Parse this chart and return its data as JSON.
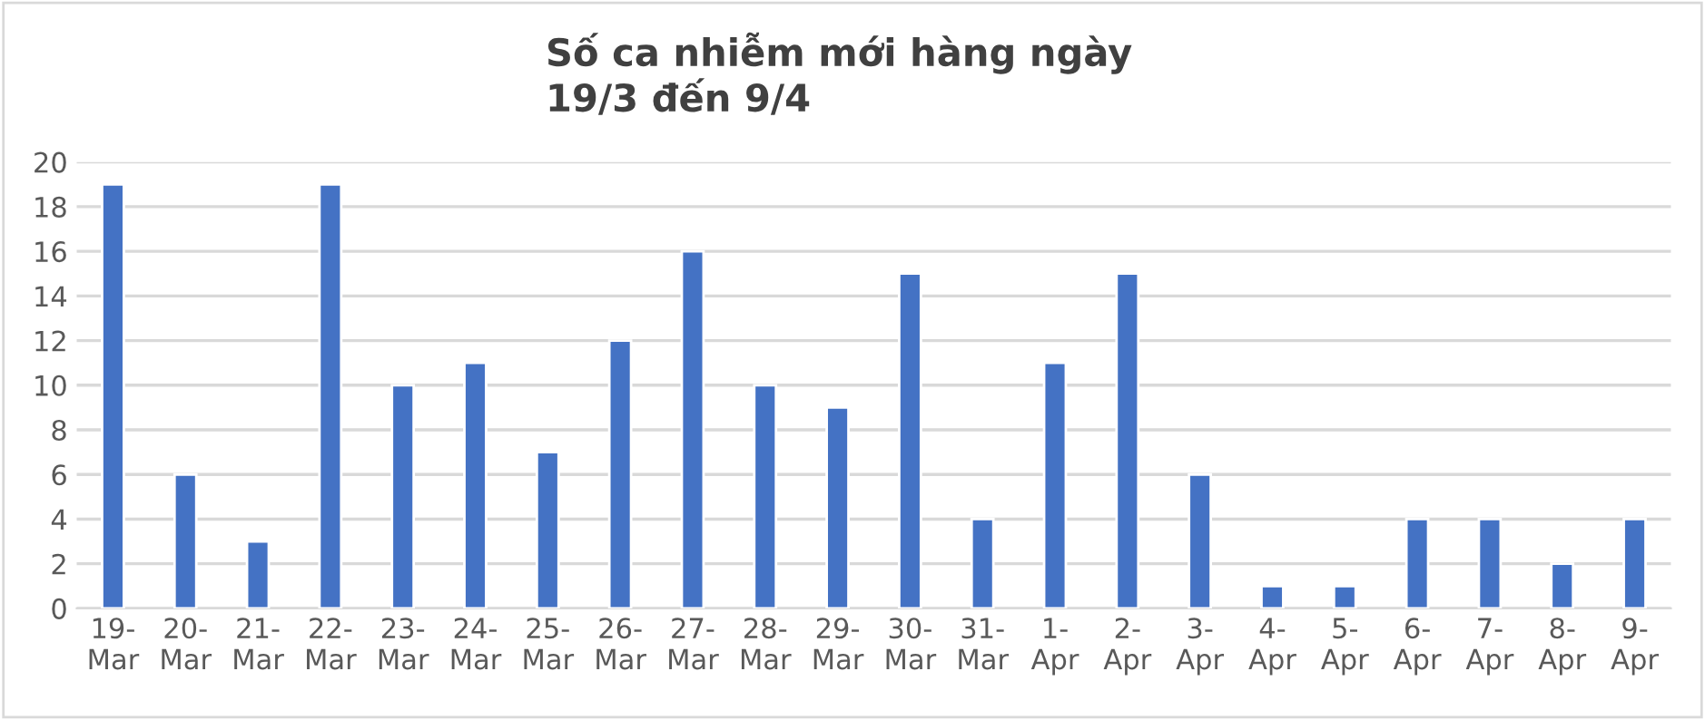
{
  "chart_data": {
    "type": "bar",
    "title": "Số ca nhiễm mới hàng ngày\n19/3 đến 9/4",
    "categories": [
      "19-\nMar",
      "20-\nMar",
      "21-\nMar",
      "22-\nMar",
      "23-\nMar",
      "24-\nMar",
      "25-\nMar",
      "26-\nMar",
      "27-\nMar",
      "28-\nMar",
      "29-\nMar",
      "30-\nMar",
      "31-\nMar",
      "1-\nApr",
      "2-\nApr",
      "3-\nApr",
      "4-\nApr",
      "5-\nApr",
      "6-\nApr",
      "7-\nApr",
      "8-\nApr",
      "9-\nApr"
    ],
    "values": [
      19,
      6,
      3,
      19,
      10,
      11,
      7,
      12,
      16,
      10,
      9,
      15,
      4,
      11,
      15,
      6,
      1,
      1,
      4,
      4,
      2,
      4
    ],
    "color": "#4472c4",
    "ylim": [
      0,
      20
    ],
    "yticks": [
      0,
      2,
      4,
      6,
      8,
      10,
      12,
      14,
      16,
      18,
      20
    ],
    "grid": "y"
  }
}
